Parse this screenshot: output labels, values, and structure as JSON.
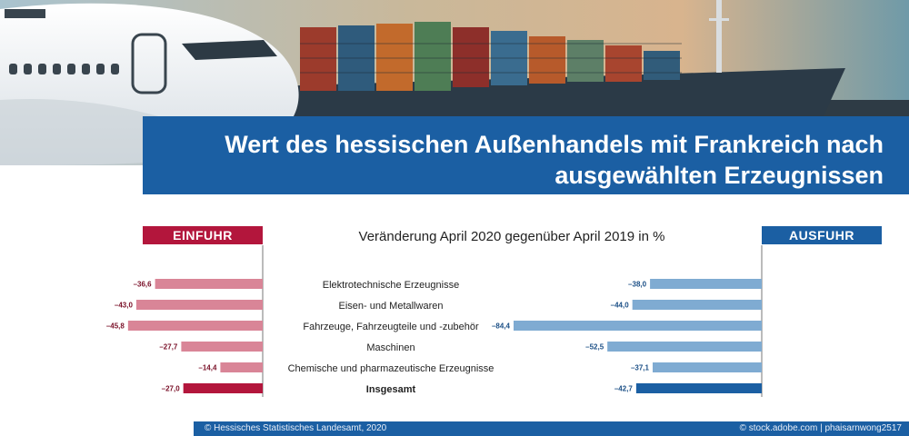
{
  "title": {
    "line1": "Wert des hessischen Außenhandels mit Frankreich nach",
    "line2": "ausgewählten Erzeugnissen"
  },
  "subtitle": "Veränderung April 2020 gegenüber April 2019 in %",
  "footer": {
    "left": "© Hessisches Statistisches Landesamt, 2020",
    "right": "© stock.adobe.com | phaisarnwong2517"
  },
  "colors": {
    "import": "#d98597",
    "import_total": "#b3163c",
    "export": "#7fabd2",
    "export_total": "#1b5fa3",
    "brand_blue": "#1b5fa3"
  },
  "chart_data": {
    "type": "bar",
    "orientation": "horizontal",
    "categories": [
      "Elektrotechnische Erzeugnisse",
      "Eisen- und Metallwaren",
      "Fahrzeuge, Fahrzeugteile und -zubehör",
      "Maschinen",
      "Chemische und pharmazeutische Erzeugnisse",
      "Insgesamt"
    ],
    "series": [
      {
        "name": "EINFUHR",
        "values": [
          -36.6,
          -43.0,
          -45.8,
          -27.7,
          -14.4,
          -27.0
        ],
        "labels": [
          "–36,6",
          "–43,0",
          "–45,8",
          "–27,7",
          "–14,4",
          "–27,0"
        ]
      },
      {
        "name": "AUSFUHR",
        "values": [
          -38.0,
          -44.0,
          -84.4,
          -52.5,
          -37.1,
          -42.7
        ],
        "labels": [
          "–38,0",
          "–44,0",
          "–84,4",
          "–52,5",
          "–37,1",
          "–42,7"
        ]
      }
    ],
    "xlim": [
      -90,
      0
    ]
  }
}
